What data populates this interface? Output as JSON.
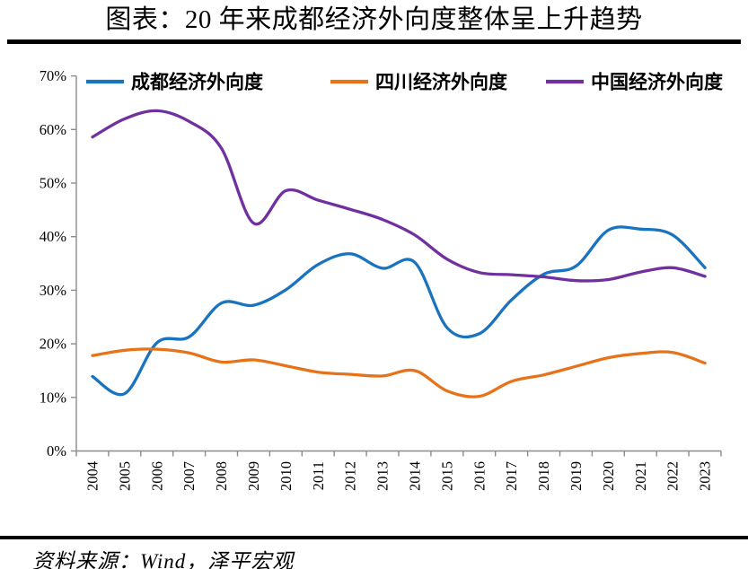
{
  "header": {
    "title": "图表：20 年来成都经济外向度整体呈上升趋势"
  },
  "footer": {
    "source": "资料来源：Wind，泽平宏观"
  },
  "colors": {
    "axis": "#8c8c8c",
    "text": "#000000",
    "rule": "#000000"
  },
  "chart_data": {
    "type": "line",
    "smooth": true,
    "grid": false,
    "legend_position": "top",
    "title": "图表：20 年来成都经济外向度整体呈上升趋势",
    "xlabel": "",
    "ylabel": "",
    "ylim": [
      0,
      70
    ],
    "ytick_step": 10,
    "y_tick_labels": [
      "0%",
      "10%",
      "20%",
      "30%",
      "40%",
      "50%",
      "60%",
      "70%"
    ],
    "categories": [
      "2004",
      "2005",
      "2006",
      "2007",
      "2008",
      "2009",
      "2010",
      "2011",
      "2012",
      "2013",
      "2014",
      "2015",
      "2016",
      "2017",
      "2018",
      "2019",
      "2020",
      "2021",
      "2022",
      "2023"
    ],
    "series": [
      {
        "name": "成都经济外向度",
        "color": "#1973be",
        "values": [
          13.9,
          10.7,
          20.2,
          21.3,
          27.6,
          27.2,
          30.1,
          34.8,
          36.8,
          34.1,
          35.2,
          23.0,
          21.9,
          28.2,
          33.0,
          34.5,
          41.2,
          41.4,
          40.3,
          34.2
        ]
      },
      {
        "name": "四川经济外向度",
        "color": "#e6731a",
        "values": [
          17.8,
          18.8,
          19.0,
          18.3,
          16.6,
          17.0,
          15.9,
          14.7,
          14.3,
          14.0,
          15.0,
          11.2,
          10.2,
          13.0,
          14.2,
          15.8,
          17.4,
          18.2,
          18.4,
          16.4
        ]
      },
      {
        "name": "中国经济外向度",
        "color": "#7030a0",
        "values": [
          58.6,
          62.0,
          63.5,
          61.5,
          56.5,
          42.5,
          48.6,
          46.8,
          45.1,
          43.2,
          40.3,
          35.8,
          33.3,
          32.9,
          32.5,
          31.8,
          32.0,
          33.4,
          34.2,
          32.6
        ]
      }
    ]
  }
}
